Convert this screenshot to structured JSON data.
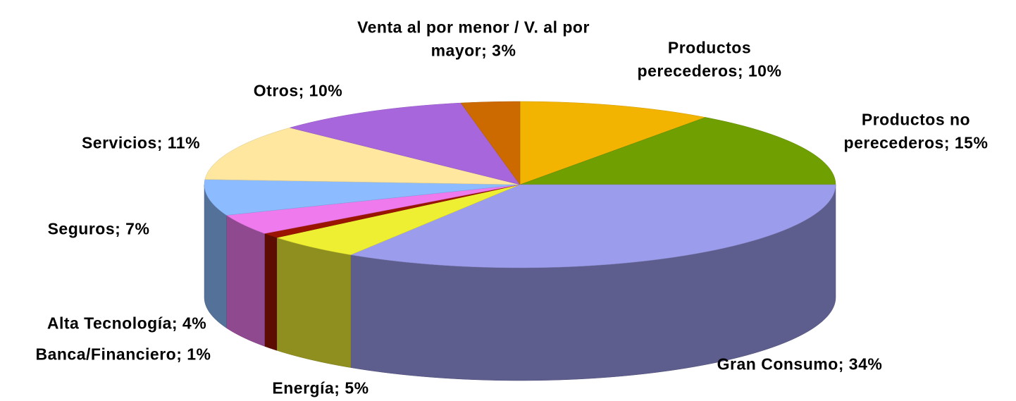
{
  "chart_data": {
    "type": "pie3d",
    "values": [
      10,
      15,
      34,
      5,
      1,
      4,
      7,
      11,
      10,
      3
    ],
    "value_labels": [
      "Productos perecederos; 10%",
      "Productos no perecederos; 15%",
      "Gran Consumo; 34%",
      "Energía; 5%",
      "Banca/Financiero; 1%",
      "Alta Tecnología; 4%",
      "Seguros; 7%",
      "Servicios; 11%",
      "Otros; 10%",
      "Venta al por menor / V. al por mayor; 3%"
    ],
    "colors": [
      "#f2b400",
      "#6f9f00",
      "#9c9cec",
      "#eeee33",
      "#9a1400",
      "#ee7aee",
      "#8cbcff",
      "#ffe7a0",
      "#a866dc",
      "#cc6a00"
    ]
  }
}
